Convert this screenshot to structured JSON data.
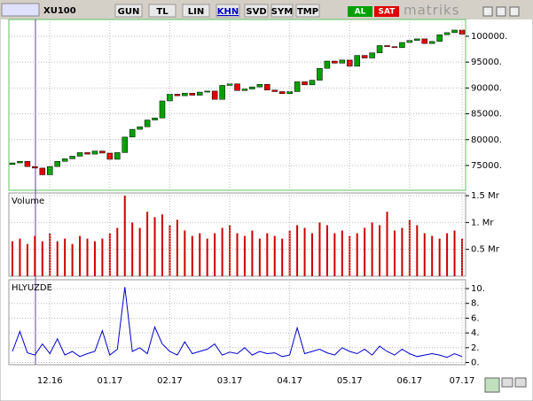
{
  "toolbar": {
    "symbol": "XU100",
    "buttons": [
      "GUN",
      "TL",
      "LIN",
      "KHN",
      "SVD",
      "SYM",
      "TMP"
    ],
    "buy": "AL",
    "sell": "SAT",
    "brand": "matriks"
  },
  "chart_data": [
    {
      "type": "candlestick",
      "up_color": "#00a000",
      "down_color": "#e00000",
      "grid": true,
      "open": [
        75200,
        75500,
        75800,
        74800,
        74500,
        73200,
        74800,
        75800,
        76300,
        76800,
        77500,
        77200,
        77800,
        77400,
        76200,
        77500,
        80500,
        82000,
        82500,
        83800,
        84200,
        87500,
        88800,
        88500,
        89000,
        88600,
        89200,
        89400,
        87800,
        90500,
        90800,
        89500,
        89800,
        90200,
        90700,
        89600,
        89300,
        88900,
        89300,
        91200,
        90600,
        91500,
        93800,
        95200,
        94800,
        95400,
        94200,
        96300,
        95800,
        96800,
        98200,
        98000,
        97800,
        98800,
        99200,
        99500,
        98600,
        99000,
        100300,
        100700,
        101200
      ],
      "close": [
        75500,
        75800,
        74800,
        74500,
        73200,
        74800,
        75800,
        76300,
        76800,
        77500,
        77200,
        77800,
        77400,
        76200,
        77500,
        80500,
        82000,
        82500,
        83800,
        84200,
        87500,
        88800,
        88500,
        89000,
        88600,
        89200,
        89400,
        87800,
        90500,
        90800,
        89500,
        89800,
        90200,
        90700,
        89600,
        89300,
        88900,
        89300,
        91200,
        90600,
        91500,
        93800,
        95200,
        94800,
        95400,
        94200,
        96300,
        95800,
        96800,
        98200,
        98000,
        97800,
        98800,
        99200,
        99500,
        98600,
        99000,
        100300,
        100700,
        101200,
        100400
      ],
      "ylim": [
        70200,
        103250
      ],
      "yticks": [
        {
          "value": 75000,
          "label": "75000."
        },
        {
          "value": 80000,
          "label": "80000."
        },
        {
          "value": 85000,
          "label": "85000."
        },
        {
          "value": 90000,
          "label": "90000."
        },
        {
          "value": 95000,
          "label": "95000."
        },
        {
          "value": 100000,
          "label": "100000."
        }
      ]
    },
    {
      "type": "bar",
      "title": "Volume",
      "color": "#cc0000",
      "grid": true,
      "values": [
        0.65,
        0.7,
        0.6,
        0.75,
        0.65,
        0.8,
        0.65,
        0.7,
        0.6,
        0.75,
        0.7,
        0.65,
        0.7,
        0.8,
        0.9,
        1.5,
        1.0,
        0.9,
        1.2,
        1.1,
        1.15,
        0.95,
        1.05,
        0.85,
        0.75,
        0.8,
        0.7,
        0.8,
        0.9,
        0.95,
        0.8,
        0.75,
        0.85,
        0.7,
        0.8,
        0.75,
        0.7,
        0.85,
        0.95,
        0.9,
        0.8,
        1.0,
        0.95,
        0.8,
        0.85,
        0.75,
        0.8,
        0.9,
        1.0,
        0.95,
        1.2,
        0.85,
        0.9,
        1.05,
        0.95,
        0.8,
        0.75,
        0.7,
        0.8,
        0.85,
        0.7
      ],
      "ylim": [
        0,
        1.55
      ],
      "yticks": [
        {
          "value": 0.5,
          "label": "0.5 Mr"
        },
        {
          "value": 1,
          "label": "1. Mr"
        },
        {
          "value": 1.5,
          "label": "1.5 Mr"
        }
      ]
    },
    {
      "type": "line",
      "title": "HLYUZDE",
      "color": "#0000cc",
      "grid": true,
      "categories": [
        null,
        null,
        null,
        null,
        null,
        "12.16",
        null,
        null,
        null,
        null,
        null,
        null,
        null,
        "01.17",
        null,
        null,
        null,
        null,
        null,
        null,
        null,
        "02.17",
        null,
        null,
        null,
        null,
        null,
        null,
        null,
        "03.17",
        null,
        null,
        null,
        null,
        null,
        null,
        null,
        "04.17",
        null,
        null,
        null,
        null,
        null,
        null,
        null,
        "05.17",
        null,
        null,
        null,
        null,
        null,
        null,
        null,
        "06.17",
        null,
        null,
        null,
        null,
        null,
        null,
        "07.17"
      ],
      "values": [
        1.5,
        4.2,
        1.3,
        1.0,
        2.5,
        1.2,
        3.2,
        1.0,
        1.5,
        0.8,
        1.2,
        1.5,
        4.3,
        1.0,
        1.8,
        10.2,
        1.5,
        2.0,
        1.2,
        4.8,
        2.5,
        1.5,
        1.0,
        2.8,
        1.2,
        1.5,
        1.8,
        2.5,
        1.0,
        1.4,
        1.2,
        2.0,
        1.0,
        1.5,
        1.2,
        1.3,
        0.8,
        1.0,
        4.7,
        1.2,
        1.5,
        1.8,
        1.3,
        1.0,
        2.0,
        1.5,
        1.2,
        1.8,
        1.0,
        2.2,
        1.5,
        1.0,
        1.8,
        1.2,
        0.8,
        1.0,
        1.2,
        1.0,
        0.7,
        1.2,
        0.8
      ],
      "ylim": [
        -0.3,
        11.2
      ],
      "yticks": [
        {
          "value": 0,
          "label": "0."
        },
        {
          "value": 2,
          "label": "2."
        },
        {
          "value": 4,
          "label": "4."
        },
        {
          "value": 6,
          "label": "6."
        },
        {
          "value": 8,
          "label": "8."
        },
        {
          "value": 10,
          "label": "10."
        }
      ]
    }
  ]
}
